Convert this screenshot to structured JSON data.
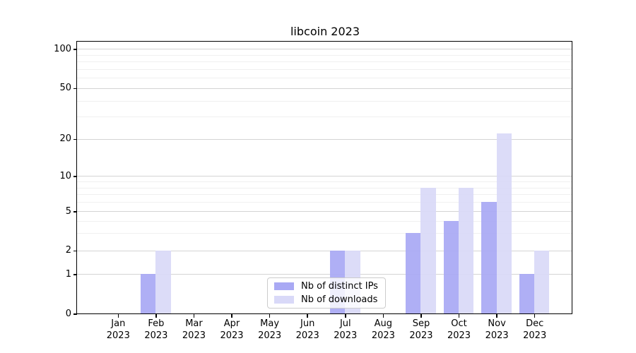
{
  "figure": {
    "title": "libcoin 2023"
  },
  "legend": {
    "items": [
      {
        "label": "Nb of distinct IPs",
        "color": "#a9a9f4"
      },
      {
        "label": "Nb of downloads",
        "color": "#d9d9f8"
      }
    ]
  },
  "chart_data": {
    "type": "bar",
    "title": "libcoin 2023",
    "categories": [
      "Jan 2023",
      "Feb 2023",
      "Mar 2023",
      "Apr 2023",
      "May 2023",
      "Jun 2023",
      "Jul 2023",
      "Aug 2023",
      "Sep 2023",
      "Oct 2023",
      "Nov 2023",
      "Dec 2023"
    ],
    "series": [
      {
        "name": "Nb of distinct IPs",
        "color": "#a9a9f4",
        "values": [
          0,
          1,
          0,
          0,
          0,
          0,
          2,
          0,
          3,
          4,
          6,
          1
        ]
      },
      {
        "name": "Nb of downloads",
        "color": "#d9d9f8",
        "values": [
          0,
          2,
          0,
          0,
          0,
          0,
          2,
          0,
          8,
          8,
          22,
          2
        ]
      }
    ],
    "xlabel": "",
    "ylabel": "",
    "yscale": "asinh-like (linear 0-1, log above)",
    "y_ticks": [
      0,
      1,
      2,
      5,
      10,
      20,
      50,
      100
    ],
    "y_minor_ticks": [
      3,
      4,
      6,
      7,
      8,
      9,
      30,
      40,
      60,
      70,
      80,
      90
    ],
    "ylim": [
      0,
      140
    ],
    "grid": "horizontal major and minor gridlines",
    "legend_position": "lower center"
  }
}
